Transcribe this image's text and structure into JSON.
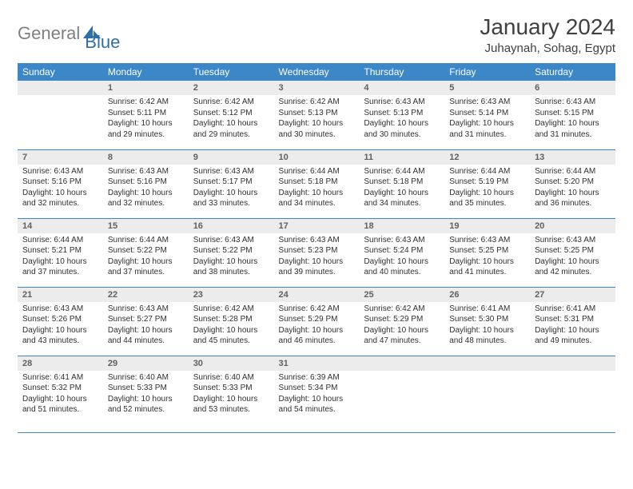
{
  "brand": {
    "text_gray": "General",
    "text_blue": "Blue"
  },
  "title": "January 2024",
  "location": "Juhaynah, Sohag, Egypt",
  "theme": {
    "header_bg": "#3b87c8",
    "header_fg": "#ffffff",
    "daynum_bg": "#ececec",
    "rule_color": "#3b87c8",
    "page_bg": "#ffffff",
    "logo_gray": "#808080",
    "logo_blue": "#2f6fa7"
  },
  "weekdays": [
    "Sunday",
    "Monday",
    "Tuesday",
    "Wednesday",
    "Thursday",
    "Friday",
    "Saturday"
  ],
  "weeks": [
    [
      null,
      {
        "n": "1",
        "sunrise": "6:42 AM",
        "sunset": "5:11 PM",
        "daylight": "10 hours and 29 minutes."
      },
      {
        "n": "2",
        "sunrise": "6:42 AM",
        "sunset": "5:12 PM",
        "daylight": "10 hours and 29 minutes."
      },
      {
        "n": "3",
        "sunrise": "6:42 AM",
        "sunset": "5:13 PM",
        "daylight": "10 hours and 30 minutes."
      },
      {
        "n": "4",
        "sunrise": "6:43 AM",
        "sunset": "5:13 PM",
        "daylight": "10 hours and 30 minutes."
      },
      {
        "n": "5",
        "sunrise": "6:43 AM",
        "sunset": "5:14 PM",
        "daylight": "10 hours and 31 minutes."
      },
      {
        "n": "6",
        "sunrise": "6:43 AM",
        "sunset": "5:15 PM",
        "daylight": "10 hours and 31 minutes."
      }
    ],
    [
      {
        "n": "7",
        "sunrise": "6:43 AM",
        "sunset": "5:16 PM",
        "daylight": "10 hours and 32 minutes."
      },
      {
        "n": "8",
        "sunrise": "6:43 AM",
        "sunset": "5:16 PM",
        "daylight": "10 hours and 32 minutes."
      },
      {
        "n": "9",
        "sunrise": "6:43 AM",
        "sunset": "5:17 PM",
        "daylight": "10 hours and 33 minutes."
      },
      {
        "n": "10",
        "sunrise": "6:44 AM",
        "sunset": "5:18 PM",
        "daylight": "10 hours and 34 minutes."
      },
      {
        "n": "11",
        "sunrise": "6:44 AM",
        "sunset": "5:18 PM",
        "daylight": "10 hours and 34 minutes."
      },
      {
        "n": "12",
        "sunrise": "6:44 AM",
        "sunset": "5:19 PM",
        "daylight": "10 hours and 35 minutes."
      },
      {
        "n": "13",
        "sunrise": "6:44 AM",
        "sunset": "5:20 PM",
        "daylight": "10 hours and 36 minutes."
      }
    ],
    [
      {
        "n": "14",
        "sunrise": "6:44 AM",
        "sunset": "5:21 PM",
        "daylight": "10 hours and 37 minutes."
      },
      {
        "n": "15",
        "sunrise": "6:44 AM",
        "sunset": "5:22 PM",
        "daylight": "10 hours and 37 minutes."
      },
      {
        "n": "16",
        "sunrise": "6:43 AM",
        "sunset": "5:22 PM",
        "daylight": "10 hours and 38 minutes."
      },
      {
        "n": "17",
        "sunrise": "6:43 AM",
        "sunset": "5:23 PM",
        "daylight": "10 hours and 39 minutes."
      },
      {
        "n": "18",
        "sunrise": "6:43 AM",
        "sunset": "5:24 PM",
        "daylight": "10 hours and 40 minutes."
      },
      {
        "n": "19",
        "sunrise": "6:43 AM",
        "sunset": "5:25 PM",
        "daylight": "10 hours and 41 minutes."
      },
      {
        "n": "20",
        "sunrise": "6:43 AM",
        "sunset": "5:25 PM",
        "daylight": "10 hours and 42 minutes."
      }
    ],
    [
      {
        "n": "21",
        "sunrise": "6:43 AM",
        "sunset": "5:26 PM",
        "daylight": "10 hours and 43 minutes."
      },
      {
        "n": "22",
        "sunrise": "6:43 AM",
        "sunset": "5:27 PM",
        "daylight": "10 hours and 44 minutes."
      },
      {
        "n": "23",
        "sunrise": "6:42 AM",
        "sunset": "5:28 PM",
        "daylight": "10 hours and 45 minutes."
      },
      {
        "n": "24",
        "sunrise": "6:42 AM",
        "sunset": "5:29 PM",
        "daylight": "10 hours and 46 minutes."
      },
      {
        "n": "25",
        "sunrise": "6:42 AM",
        "sunset": "5:29 PM",
        "daylight": "10 hours and 47 minutes."
      },
      {
        "n": "26",
        "sunrise": "6:41 AM",
        "sunset": "5:30 PM",
        "daylight": "10 hours and 48 minutes."
      },
      {
        "n": "27",
        "sunrise": "6:41 AM",
        "sunset": "5:31 PM",
        "daylight": "10 hours and 49 minutes."
      }
    ],
    [
      {
        "n": "28",
        "sunrise": "6:41 AM",
        "sunset": "5:32 PM",
        "daylight": "10 hours and 51 minutes."
      },
      {
        "n": "29",
        "sunrise": "6:40 AM",
        "sunset": "5:33 PM",
        "daylight": "10 hours and 52 minutes."
      },
      {
        "n": "30",
        "sunrise": "6:40 AM",
        "sunset": "5:33 PM",
        "daylight": "10 hours and 53 minutes."
      },
      {
        "n": "31",
        "sunrise": "6:39 AM",
        "sunset": "5:34 PM",
        "daylight": "10 hours and 54 minutes."
      },
      null,
      null,
      null
    ]
  ],
  "labels": {
    "sunrise": "Sunrise:",
    "sunset": "Sunset:",
    "daylight": "Daylight:"
  }
}
